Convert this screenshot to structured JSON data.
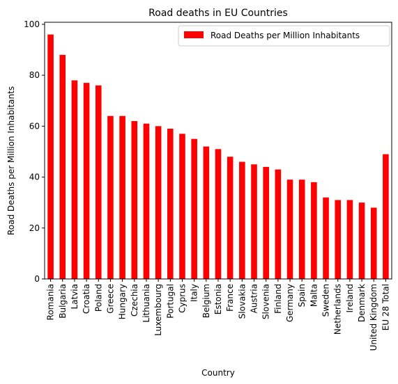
{
  "chart_data": {
    "type": "bar",
    "title": "Road deaths in EU Countries",
    "xlabel": "Country",
    "ylabel": "Road Deaths per Million Inhabitants",
    "ylim": [
      0,
      100.8
    ],
    "yticks": [
      0,
      20,
      40,
      60,
      80,
      100
    ],
    "grid": false,
    "legend_position": "top-right",
    "categories": [
      "Romania",
      "Bulgaria",
      "Latvia",
      "Croatia",
      "Poland",
      "Greece",
      "Hungary",
      "Czechia",
      "Lithuania",
      "Luxembourg",
      "Portugal",
      "Cyprus",
      "Italy",
      "Belgium",
      "Estonia",
      "France",
      "Slovakia",
      "Austria",
      "Slovenia",
      "Finland",
      "Germany",
      "Spain",
      "Malta",
      "Sweden",
      "Netherlands",
      "Ireland",
      "Denmark",
      "United Kingdom",
      "EU 28 Total"
    ],
    "series": [
      {
        "name": "Road Deaths per Million Inhabitants",
        "color": "#ff0000",
        "values": [
          96,
          88,
          78,
          77,
          76,
          64,
          64,
          62,
          61,
          60,
          59,
          57,
          55,
          52,
          51,
          48,
          46,
          45,
          44,
          43,
          39,
          39,
          38,
          32,
          31,
          31,
          30,
          28,
          49
        ]
      }
    ]
  }
}
